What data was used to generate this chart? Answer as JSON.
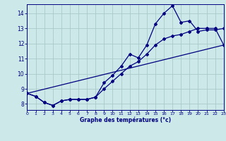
{
  "xlabel": "Graphe des températures (°c)",
  "background_color": "#cce8e8",
  "grid_color": "#aacaca",
  "line_color": "#000080",
  "x_ticks": [
    0,
    1,
    2,
    3,
    4,
    5,
    6,
    7,
    8,
    9,
    10,
    11,
    12,
    13,
    14,
    15,
    16,
    17,
    18,
    19,
    20,
    21,
    22,
    23
  ],
  "y_ticks": [
    8,
    9,
    10,
    11,
    12,
    13,
    14
  ],
  "xlim": [
    0,
    23
  ],
  "ylim": [
    7.6,
    14.6
  ],
  "line1_x": [
    0,
    1,
    2,
    3,
    4,
    5,
    6,
    7,
    8,
    9,
    10,
    11,
    12,
    13,
    14,
    15,
    16,
    17,
    18,
    19,
    20,
    21,
    22,
    23
  ],
  "line1_y": [
    8.7,
    8.5,
    8.1,
    7.9,
    8.2,
    8.3,
    8.3,
    8.3,
    8.45,
    9.4,
    9.9,
    10.5,
    11.3,
    11.05,
    11.9,
    13.3,
    14.0,
    14.5,
    13.4,
    13.5,
    12.8,
    12.9,
    12.9,
    13.0
  ],
  "line2_x": [
    0,
    1,
    2,
    3,
    4,
    5,
    6,
    7,
    8,
    9,
    10,
    11,
    12,
    13,
    14,
    15,
    16,
    17,
    18,
    19,
    20,
    21,
    22,
    23
  ],
  "line2_y": [
    8.7,
    8.5,
    8.1,
    7.9,
    8.2,
    8.3,
    8.3,
    8.3,
    8.45,
    9.0,
    9.5,
    10.0,
    10.5,
    10.8,
    11.3,
    11.9,
    12.3,
    12.5,
    12.6,
    12.8,
    13.0,
    13.0,
    13.0,
    11.9
  ],
  "line3_x": [
    0,
    23
  ],
  "line3_y": [
    8.7,
    11.9
  ]
}
